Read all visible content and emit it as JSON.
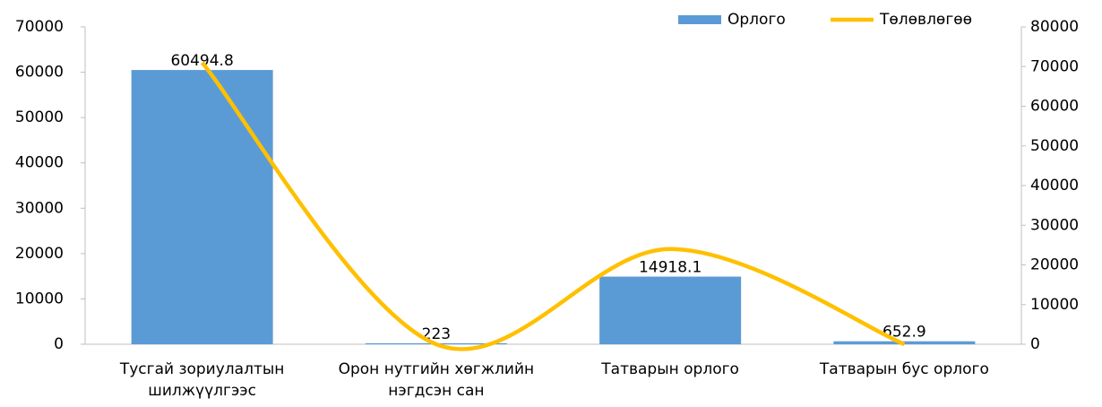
{
  "chart_data": {
    "type": "bar_line",
    "categories": [
      "Тусгай зориулалтын шилжүүлгээс",
      "Орон нутгийн хөгжлийн нэгдсэн сан",
      "Татварын орлого",
      "Татварын бус орлого"
    ],
    "series": [
      {
        "name": "Орлого",
        "type": "bar",
        "color": "#5b9bd5",
        "values": [
          60494.8,
          223,
          14918.1,
          652.9
        ]
      },
      {
        "name": "Төлөвлөгөө",
        "type": "line",
        "axis": "y2",
        "color": "#ffc000",
        "values": [
          71000,
          0,
          24000,
          0
        ]
      }
    ],
    "ylim": [
      0,
      70000
    ],
    "yticks": [
      0,
      10000,
      20000,
      30000,
      40000,
      50000,
      60000,
      70000
    ],
    "y2lim": [
      0,
      80000
    ],
    "y2ticks": [
      0,
      10000,
      20000,
      30000,
      40000,
      50000,
      60000,
      70000,
      80000
    ],
    "legend": "top-right"
  }
}
